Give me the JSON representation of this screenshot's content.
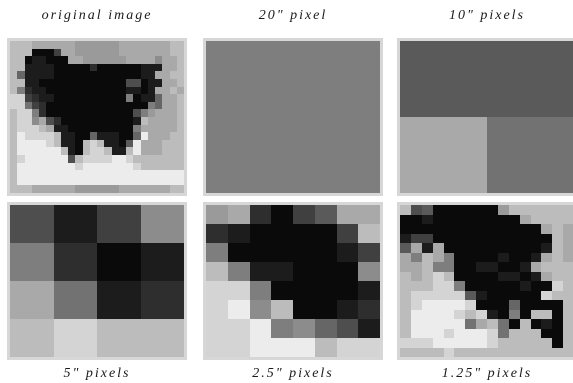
{
  "panels": [
    {
      "label": "original image",
      "cols": 24,
      "rows": 20,
      "rows_data": [
        "cccbbbbbbaaaaaabbbbbbbcc",
        "ccc0003bbaaaaaabbbbbbbcc",
        "cc011000bbaaaaaabbbb9bbc",
        "cc1111000002000000111bbc",
        "c6111100000000000011bbcc",
        "cc1100000000000044011bbc",
        "c8211000000000001101bbcb",
        "dd3211000000000080116bbc",
        "dd7320000000000000086bbc",
        "cdd8200000000000048abbbc",
        "cdd9b4200000000001cbbbbc",
        "cdddcb110000000008bbbbbc",
        "ceddddc11006111006ebbbcc",
        "ceeeedc110cdc1105ebbbccc",
        "ceeeeeec10cddc11cebbbccc",
        "cdeeeeee4cddddeedccccccc",
        "ceeeeeeeedeeeeeeedcccccc",
        "ceeeeeeeeeeeeeeeeeeeeeee",
        "ceeeeeeeeeeeeeeeeeeeeeee",
        "cccbbbbbbaaaaaabbbbbbbcc"
      ]
    },
    {
      "label": "20\" pixel",
      "cols": 1,
      "rows": 1,
      "rows_data": [
        "8"
      ]
    },
    {
      "label": "10\" pixels",
      "cols": 2,
      "rows": 2,
      "rows_data": [
        "55",
        "b7"
      ]
    },
    {
      "label": "5\" pixels",
      "cols": 4,
      "rows": 4,
      "rows_data": [
        "4139",
        "8201",
        "b712",
        "cdcc"
      ]
    },
    {
      "label": "2.5\" pixels",
      "cols": 8,
      "rows": 8,
      "rows_data": [
        "ab2035bb",
        "2100003c",
        "80000013",
        "c8110009",
        "dd800001",
        "de9c0012",
        "dde89641",
        "ddeeecdd"
      ]
    },
    {
      "label": "1.25\" pixels",
      "cols": 16,
      "rows": 16,
      "rows_data": [
        "c45000000acccccc",
        "00100000000bcccc",
        "0000000000000bcb",
        "13300000000000cb",
        "5b1b0000000001cb",
        "b8cb800001001bcb",
        "bbc880011001bccc",
        "cbcdc00001101bcc",
        "cccdd800000100dc",
        "cddddd5100000dcc",
        "cdeeeed00060000c",
        "ceeeedcd1080cc0c",
        "ceeeee7bc70c010c",
        "ceeedeeed7ccc00c",
        "dddeeeeedccccc0c",
        "ccccdccccccccccc"
      ]
    }
  ],
  "colors": {
    "0": "#0a0a0a",
    "1": "#1c1c1c",
    "2": "#2e2e2e",
    "3": "#404040",
    "4": "#4e4e4e",
    "5": "#5a5a5a",
    "6": "#666666",
    "7": "#727272",
    "8": "#7e7e7e",
    "9": "#8c8c8c",
    "a": "#9a9a9a",
    "b": "#a9a9a9",
    "c": "#bcbcbc",
    "d": "#d4d4d4",
    "e": "#ececec"
  }
}
